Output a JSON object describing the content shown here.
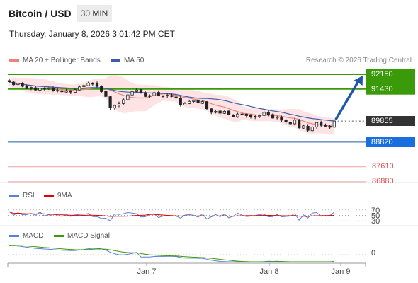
{
  "header": {
    "title": "Bitcoin / USD",
    "timeframe": "30 MIN",
    "timestamp": "Thursday, January 8, 2026 3:01:42 PM CET"
  },
  "legend": {
    "ma20_bb": "MA 20 + Bollinger Bands",
    "ma50": "MA 50",
    "credit": "Research © 2026 Trading Central",
    "rsi": "RSI",
    "rsi_ma": "9MA",
    "macd": "MACD",
    "macd_signal": "MACD Signal"
  },
  "colors": {
    "ma20": "#f08080",
    "ma50": "#3a5fa8",
    "bollinger_fill": "#fde3e3",
    "resistance": "#3a9a0a",
    "pivot": "#1a5ea8",
    "support": "#e05050",
    "arrow": "#1f56a8",
    "rsi": "#5b7fd6",
    "rsi_ma": "#e00000",
    "macd": "#5b7fd6",
    "macd_signal": "#3a9a0a"
  },
  "chart_data": [
    {
      "type": "candlestick",
      "title": "Bitcoin / USD",
      "timeframe": "30 MIN",
      "x_ticks": [
        "Jan 7",
        "Jan 8",
        "Jan 9"
      ],
      "ylim": [
        86700,
        92600
      ],
      "levels": {
        "resistance": [
          92150,
          91430
        ],
        "current": 89855,
        "pivot": 88820,
        "support": [
          87610,
          86880
        ]
      },
      "trend_arrow": "up",
      "close_path": [
        91780,
        91640,
        91700,
        91560,
        91450,
        91500,
        91380,
        91460,
        91420,
        91470,
        91340,
        91360,
        91290,
        91350,
        91280,
        91390,
        91530,
        91600,
        91720,
        91680,
        91550,
        91300,
        91060,
        90520,
        90620,
        90700,
        90900,
        91140,
        91300,
        91380,
        91250,
        91060,
        91100,
        91250,
        91110,
        91090,
        91120,
        91060,
        90980,
        90660,
        90720,
        90820,
        90860,
        90740,
        90810,
        90460,
        90280,
        90330,
        90240,
        90330,
        90160,
        90060,
        90200,
        90200,
        90120,
        90080,
        90060,
        90120,
        90280,
        90160,
        90000,
        90040,
        89900,
        89800,
        89720,
        89900,
        89520,
        89620,
        89400,
        89560,
        89780,
        89640,
        89610,
        89550,
        89855
      ]
    },
    {
      "type": "line",
      "title": "RSI",
      "series": [
        {
          "name": "RSI"
        },
        {
          "name": "9MA"
        }
      ],
      "levels": [
        70,
        50,
        30
      ]
    },
    {
      "type": "line",
      "title": "MACD",
      "series": [
        {
          "name": "MACD"
        },
        {
          "name": "MACD Signal"
        }
      ],
      "levels": [
        0
      ]
    }
  ]
}
